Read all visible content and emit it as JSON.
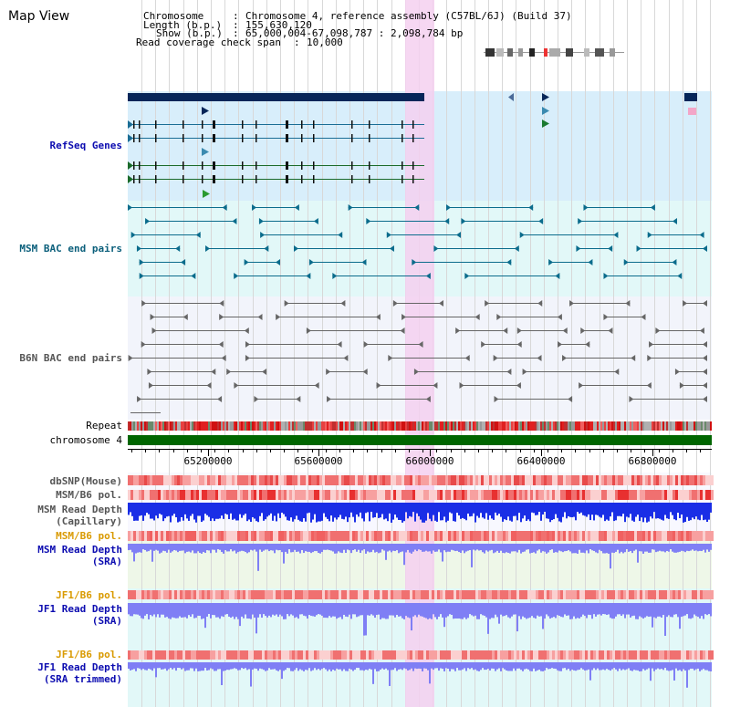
{
  "title": "Map View",
  "info": {
    "chromosome_label": "Chromosome",
    "chromosome_value": "Chromosome 4, reference assembly (C57BL/6J) (Build 37)",
    "length_label": "Length (b.p.)",
    "length_value": "155,630,120",
    "show_label": "Show (b.p.)",
    "show_value": "65,000,004-67,098,787 : 2,098,784 bp",
    "coverage_label": "Read coverage check span",
    "coverage_value": "10,000"
  },
  "tracks": {
    "refseq": "RefSeq Genes",
    "msm_bac": "MSM BAC end pairs",
    "b6n_bac": "B6N BAC end pairs",
    "repeat": "Repeat",
    "chromosome": "chromosome 4",
    "dbsnp": "dbSNP(Mouse)",
    "msm_pol": "MSM/B6 pol.",
    "msm_depth_cap_1": "MSM Read Depth",
    "msm_depth_cap_2": "(Capillary)",
    "msm_pol2": "MSM/B6 pol.",
    "msm_depth_sra_1": "MSM Read Depth",
    "msm_depth_sra_2": "(SRA)",
    "jf1_pol": "JF1/B6 pol.",
    "jf1_depth_1": "JF1 Read Depth",
    "jf1_depth_2": "(SRA)",
    "jf1_pol2": "JF1/B6 pol.",
    "jf1_trim_1": "JF1 Read Depth",
    "jf1_trim_2": "(SRA trimmed)"
  },
  "axis": {
    "ticks": [
      "65200000",
      "65600000",
      "66000000",
      "66400000",
      "66800000"
    ]
  },
  "colors": {
    "highlight": "#f5d0f0",
    "refseq_bg": "#d8eefb",
    "msm_bg": "#e2f8f8",
    "b6n_bg": "#f2f4fb",
    "gene_dark": "#062659",
    "msm_line": "#0b6c8c",
    "b6n_line": "#666666",
    "chromosome_bar": "#006600",
    "depth_blue": "#1a2ee6",
    "depth_light": "#7f7ff5"
  }
}
